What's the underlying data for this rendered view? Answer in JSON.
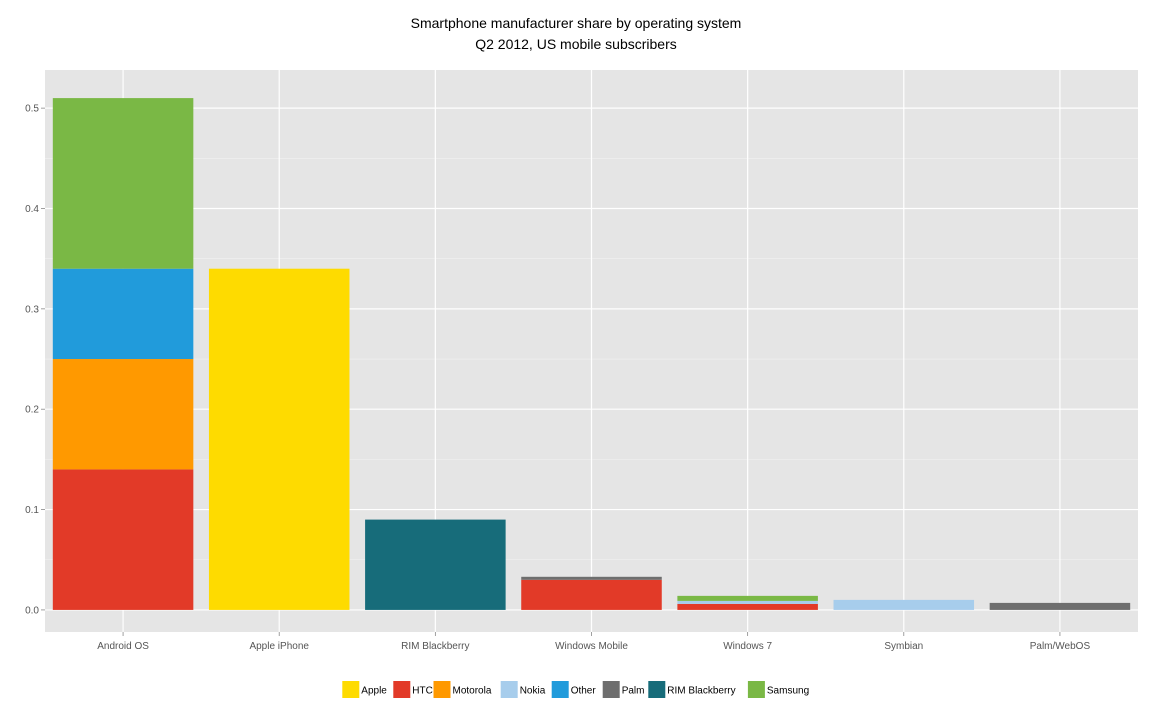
{
  "chart_data": {
    "type": "bar",
    "stacked": true,
    "title": "Smartphone manufacturer share by operating system",
    "subtitle": "Q2 2012, US mobile subscribers",
    "categories": [
      "Android OS",
      "Apple iPhone",
      "RIM Blackberry",
      "Windows Mobile",
      "Windows 7",
      "Symbian",
      "Palm/WebOS"
    ],
    "series": [
      {
        "name": "Apple",
        "color": "#FEDB00",
        "values": [
          0,
          0.34,
          0,
          0,
          0,
          0,
          0
        ]
      },
      {
        "name": "HTC",
        "color": "#E23A28",
        "values": [
          0.14,
          0,
          0,
          0.03,
          0.006,
          0,
          0
        ]
      },
      {
        "name": "Motorola",
        "color": "#FF9900",
        "values": [
          0.11,
          0,
          0,
          0,
          0,
          0,
          0
        ]
      },
      {
        "name": "Nokia",
        "color": "#A7CDEC",
        "values": [
          0,
          0,
          0,
          0,
          0.003,
          0.01,
          0
        ]
      },
      {
        "name": "Other",
        "color": "#219BDB",
        "values": [
          0.09,
          0,
          0,
          0,
          0,
          0,
          0
        ]
      },
      {
        "name": "Palm",
        "color": "#6E6E6E",
        "values": [
          0,
          0,
          0,
          0.003,
          0,
          0,
          0.007
        ]
      },
      {
        "name": "RIM Blackberry",
        "color": "#176C7A",
        "values": [
          0,
          0,
          0.09,
          0,
          0,
          0,
          0
        ]
      },
      {
        "name": "Samsung",
        "color": "#7AB845",
        "values": [
          0.17,
          0,
          0,
          0,
          0.005,
          0,
          0
        ]
      }
    ],
    "xlabel": "",
    "ylabel": "",
    "ylim": [
      -0.022,
      0.538
    ],
    "yticks": [
      "0.0",
      "0.1",
      "0.2",
      "0.3",
      "0.4",
      "0.5"
    ],
    "grid": true,
    "legend_position": "bottom"
  }
}
